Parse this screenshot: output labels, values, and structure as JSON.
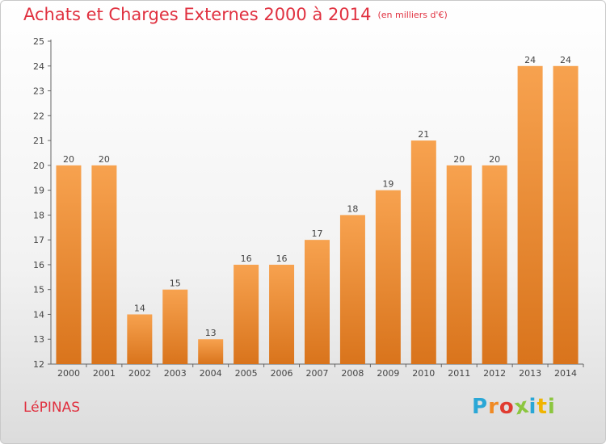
{
  "title": "Achats et Charges Externes 2000 à 2014",
  "unit": "(en milliers d'€)",
  "city": "LéPINAS",
  "logo": {
    "letters": [
      "P",
      "r",
      "o",
      "x",
      "i",
      "t",
      "i"
    ],
    "colors": [
      "#2aa7d6",
      "#f08a24",
      "#e03c31",
      "#8cc63f",
      "#2aa7d6",
      "#f0b400",
      "#8cc63f"
    ]
  },
  "colors": {
    "bar_light": "#f7a24f",
    "bar_dark": "#d9741c",
    "title": "#e0303f"
  },
  "chart_data": {
    "type": "bar",
    "categories": [
      "2000",
      "2001",
      "2002",
      "2003",
      "2004",
      "2005",
      "2006",
      "2007",
      "2008",
      "2009",
      "2010",
      "2011",
      "2012",
      "2013",
      "2014"
    ],
    "values": [
      20,
      20,
      14,
      15,
      13,
      16,
      16,
      17,
      18,
      19,
      21,
      20,
      20,
      24,
      24
    ],
    "ylim": [
      12,
      25
    ],
    "yticks": [
      12,
      13,
      14,
      15,
      16,
      17,
      18,
      19,
      20,
      21,
      22,
      23,
      24,
      25
    ],
    "grid": false,
    "legend": "none"
  }
}
